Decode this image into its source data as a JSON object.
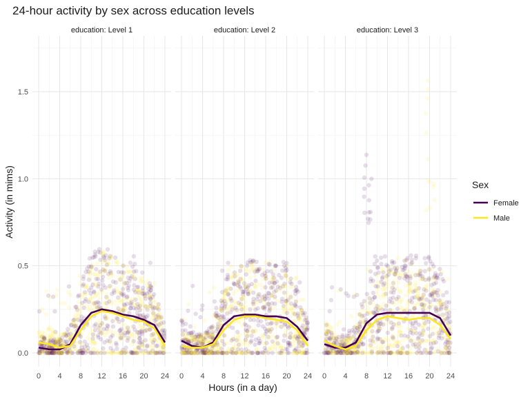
{
  "chart_data": {
    "type": "scatter",
    "title": "24-hour activity by sex across education levels",
    "xlabel": "Hours (in a day)",
    "ylabel": "Activity (in mims)",
    "xlim": [
      0,
      24
    ],
    "ylim": [
      0,
      1.8
    ],
    "x_ticks": [
      "0",
      "4",
      "8",
      "12",
      "16",
      "20",
      "24"
    ],
    "y_ticks": [
      "0.0",
      "0.5",
      "1.0",
      "1.5"
    ],
    "facets": [
      "education: Level 1",
      "education: Level 2",
      "education: Level 3"
    ],
    "legend": {
      "title": "Sex",
      "position": "right",
      "entries": [
        "Female",
        "Male"
      ]
    },
    "colors": {
      "Female": "#440154",
      "Male": "#fde725"
    },
    "grid": true,
    "smooth": [
      {
        "facet": "education: Level 1",
        "series": [
          {
            "name": "Female",
            "x": [
              0,
              2,
              4,
              6,
              8,
              10,
              12,
              14,
              16,
              18,
              20,
              22,
              24
            ],
            "y": [
              0.03,
              0.02,
              0.02,
              0.05,
              0.16,
              0.23,
              0.25,
              0.24,
              0.22,
              0.21,
              0.19,
              0.16,
              0.06
            ]
          },
          {
            "name": "Male",
            "x": [
              0,
              2,
              4,
              6,
              8,
              10,
              12,
              14,
              16,
              18,
              20,
              22,
              24
            ],
            "y": [
              0.06,
              0.05,
              0.03,
              0.04,
              0.13,
              0.21,
              0.24,
              0.23,
              0.21,
              0.19,
              0.18,
              0.14,
              0.04
            ]
          }
        ]
      },
      {
        "facet": "education: Level 2",
        "series": [
          {
            "name": "Female",
            "x": [
              0,
              2,
              4,
              6,
              8,
              10,
              12,
              14,
              16,
              18,
              20,
              22,
              24
            ],
            "y": [
              0.07,
              0.04,
              0.03,
              0.06,
              0.16,
              0.21,
              0.22,
              0.22,
              0.21,
              0.21,
              0.2,
              0.15,
              0.07
            ]
          },
          {
            "name": "Male",
            "x": [
              0,
              2,
              4,
              6,
              8,
              10,
              12,
              14,
              16,
              18,
              20,
              22,
              24
            ],
            "y": [
              0.04,
              0.03,
              0.03,
              0.05,
              0.13,
              0.19,
              0.21,
              0.21,
              0.2,
              0.19,
              0.18,
              0.13,
              0.04
            ]
          }
        ]
      },
      {
        "facet": "education: Level 3",
        "series": [
          {
            "name": "Female",
            "x": [
              0,
              2,
              4,
              6,
              8,
              10,
              12,
              14,
              16,
              18,
              20,
              22,
              24
            ],
            "y": [
              0.05,
              0.03,
              0.03,
              0.06,
              0.17,
              0.22,
              0.23,
              0.23,
              0.23,
              0.23,
              0.23,
              0.2,
              0.1
            ]
          },
          {
            "name": "Male",
            "x": [
              0,
              2,
              4,
              6,
              8,
              10,
              12,
              14,
              16,
              18,
              20,
              22,
              24
            ],
            "y": [
              0.07,
              0.04,
              0.02,
              0.04,
              0.13,
              0.19,
              0.21,
              0.2,
              0.19,
              0.2,
              0.2,
              0.16,
              0.08
            ]
          }
        ]
      }
    ]
  }
}
